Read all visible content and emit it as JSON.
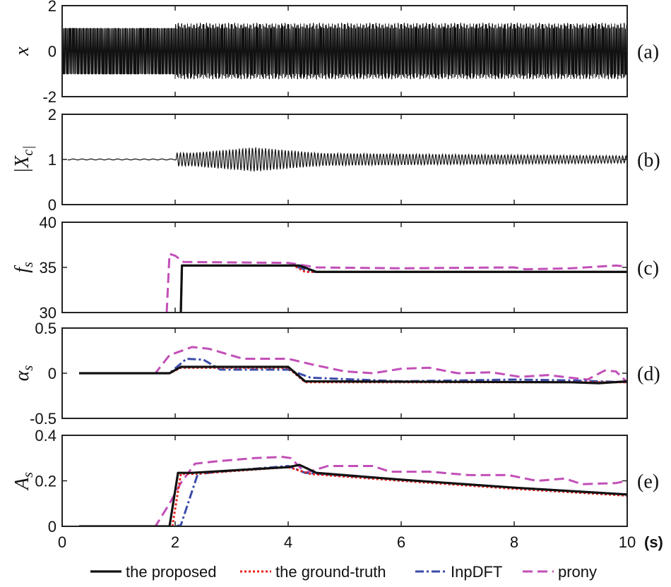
{
  "x_axis": {
    "ticks": [
      "0",
      "2",
      "4",
      "6",
      "8",
      "10"
    ],
    "tick_values": [
      0,
      2,
      4,
      6,
      8,
      10
    ],
    "range": [
      0,
      10
    ],
    "unit_label": "(s)"
  },
  "legend": [
    "the proposed",
    "the ground-truth",
    "InpDFT",
    "prony"
  ],
  "colors": {
    "proposed": "#111111",
    "ground_truth": "#e3221b",
    "inpdft": "#3b4ba8",
    "prony": "#c24fb8"
  },
  "chart_data": [
    {
      "type": "line",
      "panel_label": "(a)",
      "ylabel": "x",
      "ylim": [
        -2,
        2
      ],
      "ytick_values": [
        -2,
        0,
        2
      ],
      "yticks": [
        "-2",
        "0",
        "2"
      ],
      "series": [
        {
          "name": "x",
          "description": "oscillating signal, amplitude 1 before t=2 s, then beating about 1.0-1.2 after",
          "x": [
            0,
            2,
            2,
            10
          ],
          "amp": [
            1.0,
            1.0,
            1.22,
            1.05
          ]
        }
      ]
    },
    {
      "type": "line",
      "panel_label": "(b)",
      "ylabel": "|Xc|",
      "ylim": [
        0,
        2
      ],
      "ytick_values": [
        0,
        1,
        2
      ],
      "yticks": [
        "0",
        "1",
        "2"
      ],
      "series": [
        {
          "name": "|Xc|",
          "description": "flat at 1 until 2 s, then oscillation around 1 with envelope",
          "x": [
            0,
            2,
            2.1,
            3.4,
            4.5,
            10
          ],
          "amp": [
            0,
            0,
            0.15,
            0.25,
            0.15,
            0.1
          ]
        }
      ]
    },
    {
      "type": "line",
      "panel_label": "(c)",
      "ylabel": "fs",
      "ylim": [
        30,
        40
      ],
      "ytick_values": [
        30,
        35,
        40
      ],
      "yticks": [
        "30",
        "35",
        "40"
      ],
      "series": [
        {
          "name": "the proposed",
          "x": [
            2.1,
            2.12,
            4.2,
            4.5,
            10
          ],
          "y": [
            30,
            35.2,
            35.2,
            34.5,
            34.5
          ]
        },
        {
          "name": "the ground-truth",
          "x": [
            2.1,
            2.12,
            4.1,
            4.3,
            10
          ],
          "y": [
            30,
            35.2,
            35.2,
            34.5,
            34.5
          ]
        },
        {
          "name": "InpDFT",
          "x": [
            2.1,
            2.12,
            4.1,
            4.4,
            10
          ],
          "y": [
            30,
            35.2,
            35.2,
            34.5,
            34.5
          ]
        },
        {
          "name": "prony",
          "x": [
            1.85,
            1.9,
            2.0,
            2.15,
            4.0,
            4.5,
            6.0,
            8.0,
            8.2,
            9.0,
            9.8,
            10
          ],
          "y": [
            30,
            36.5,
            36.3,
            35.6,
            35.5,
            35.0,
            34.9,
            35.0,
            34.8,
            34.9,
            35.2,
            35.1
          ]
        }
      ]
    },
    {
      "type": "line",
      "panel_label": "(d)",
      "ylabel": "αs",
      "ylim": [
        -0.5,
        0.5
      ],
      "ytick_values": [
        -0.5,
        0,
        0.5
      ],
      "yticks": [
        "-0.5",
        "0",
        "0.5"
      ],
      "series": [
        {
          "name": "the proposed",
          "x": [
            0.3,
            1.9,
            2.1,
            4.0,
            4.3,
            9.0,
            9.5,
            10
          ],
          "y": [
            0,
            0,
            0.07,
            0.07,
            -0.09,
            -0.1,
            -0.11,
            -0.09
          ]
        },
        {
          "name": "the ground-truth",
          "x": [
            0.3,
            1.9,
            2.1,
            4.0,
            4.3,
            10
          ],
          "y": [
            0,
            0,
            0.06,
            0.06,
            -0.1,
            -0.1
          ]
        },
        {
          "name": "InpDFT",
          "x": [
            0.3,
            1.9,
            2.2,
            2.5,
            2.8,
            4.0,
            4.4,
            6.0,
            8.0,
            9.0,
            10
          ],
          "y": [
            0,
            0,
            0.16,
            0.15,
            0.04,
            0.04,
            -0.05,
            -0.09,
            -0.07,
            -0.08,
            -0.1
          ]
        },
        {
          "name": "prony",
          "x": [
            0.3,
            1.65,
            1.9,
            2.3,
            2.6,
            3.2,
            4.0,
            4.4,
            5.0,
            5.5,
            6.0,
            6.5,
            7.0,
            7.6,
            8.1,
            8.6,
            9.0,
            9.3,
            9.6,
            9.8,
            10
          ],
          "y": [
            0,
            0,
            0.2,
            0.29,
            0.27,
            0.16,
            0.16,
            0.1,
            0.02,
            0,
            0.05,
            0.06,
            0,
            0.01,
            -0.04,
            -0.02,
            -0.05,
            -0.07,
            0.03,
            0.02,
            -0.1
          ]
        }
      ]
    },
    {
      "type": "line",
      "panel_label": "(e)",
      "ylabel": "As",
      "ylim": [
        0,
        0.4
      ],
      "ytick_values": [
        0,
        0.2,
        0.4
      ],
      "yticks": [
        "0",
        "0.2",
        "0.4"
      ],
      "series": [
        {
          "name": "the proposed",
          "x": [
            0.3,
            1.9,
            2.05,
            2.3,
            4.0,
            4.2,
            4.5,
            6.0,
            8.0,
            10
          ],
          "y": [
            0,
            0,
            0.235,
            0.235,
            0.26,
            0.27,
            0.235,
            0.205,
            0.17,
            0.14
          ]
        },
        {
          "name": "the ground-truth",
          "x": [
            0.3,
            1.95,
            2.1,
            2.3,
            4.0,
            4.4,
            6.0,
            8.0,
            10
          ],
          "y": [
            0,
            0,
            0.23,
            0.23,
            0.26,
            0.23,
            0.2,
            0.165,
            0.135
          ]
        },
        {
          "name": "InpDFT",
          "x": [
            0.3,
            2.0,
            2.1,
            2.4,
            3.0,
            4.0,
            4.3,
            6.0,
            8.0,
            10
          ],
          "y": [
            0,
            0,
            0.005,
            0.23,
            0.245,
            0.265,
            0.235,
            0.205,
            0.17,
            0.14
          ]
        },
        {
          "name": "prony",
          "x": [
            0.3,
            1.65,
            1.9,
            2.1,
            2.35,
            2.7,
            3.4,
            3.9,
            4.05,
            4.3,
            4.7,
            5.5,
            5.8,
            6.5,
            7.2,
            7.9,
            8.4,
            8.9,
            9.2,
            9.8,
            10
          ],
          "y": [
            0,
            0,
            0.1,
            0.19,
            0.275,
            0.285,
            0.3,
            0.305,
            0.3,
            0.235,
            0.265,
            0.265,
            0.24,
            0.24,
            0.225,
            0.225,
            0.2,
            0.21,
            0.185,
            0.19,
            0.2
          ]
        }
      ]
    }
  ]
}
